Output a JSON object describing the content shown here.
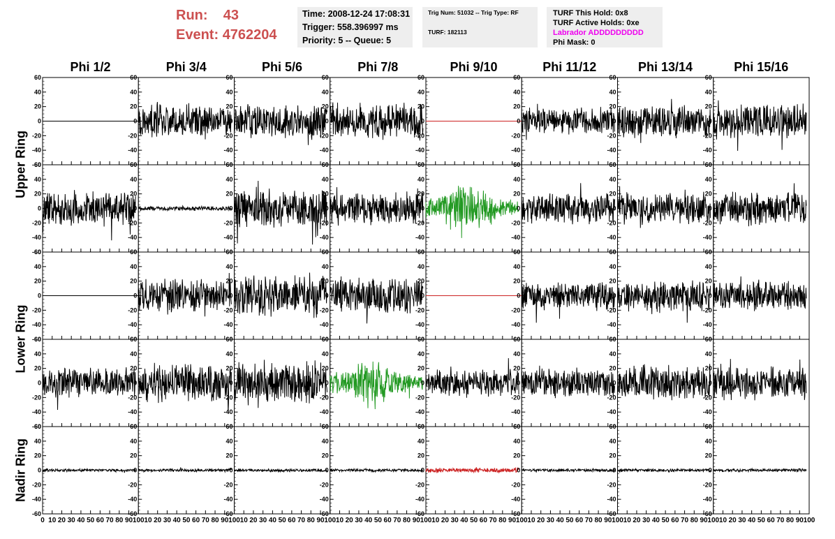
{
  "header": {
    "run_label": "Run:",
    "run_value": "43",
    "event_label": "Event:",
    "event_value": "4762204"
  },
  "info": {
    "time": "Time: 2008-12-24 17:08:31",
    "trigger": "Trigger: 558.396997 ms",
    "priority": "Priority: 5 -- Queue: 5",
    "trig_num": "Trig Num: 51032 -- Trig Type: RF",
    "turf": "TURF: 182113",
    "turf_this_hold": "TURF This Hold: 0x8",
    "turf_active_holds": "TURF Active Holds: 0xe",
    "labrador": "Labrador ADDDDDDDDD",
    "phi_mask": "Phi Mask: 0"
  },
  "colors": {
    "trace": "#000000",
    "green": "#229922",
    "red": "#cc2222",
    "run_text": "#cc5050",
    "magenta": "#ee00ee",
    "info_bg": "#eeeeee"
  },
  "chart_data": {
    "type": "line",
    "columns": [
      "Phi 1/2",
      "Phi 3/4",
      "Phi 5/6",
      "Phi 7/8",
      "Phi 9/10",
      "Phi 11/12",
      "Phi 13/14",
      "Phi 15/16"
    ],
    "rows": [
      "Upper Ring",
      "Upper Ring",
      "Lower Ring",
      "Lower Ring",
      "Nadir Ring"
    ],
    "row_labels": [
      {
        "label": "Upper Ring",
        "rows": [
          0,
          1
        ]
      },
      {
        "label": "Lower Ring",
        "rows": [
          2,
          3
        ]
      },
      {
        "label": "Nadir Ring",
        "rows": [
          4
        ]
      }
    ],
    "xlim": [
      0,
      100
    ],
    "ylim": [
      -60,
      60
    ],
    "y_ticks": [
      "60",
      "40",
      "20",
      "0",
      "-20",
      "-40",
      "-60"
    ],
    "x_ticks": [
      "0",
      "10",
      "20",
      "30",
      "40",
      "50",
      "60",
      "70",
      "80",
      "90",
      "100"
    ],
    "panels": [
      [
        {
          "style": "flat",
          "amp": 0,
          "color": "trace"
        },
        {
          "style": "noise",
          "amp": 22,
          "color": "trace"
        },
        {
          "style": "noise",
          "amp": 24,
          "color": "trace"
        },
        {
          "style": "noise",
          "amp": 24,
          "color": "trace"
        },
        {
          "style": "flat",
          "amp": 0,
          "color": "red"
        },
        {
          "style": "noise",
          "amp": 18,
          "color": "trace"
        },
        {
          "style": "noise",
          "amp": 22,
          "color": "trace"
        },
        {
          "style": "noise",
          "amp": 24,
          "color": "trace"
        }
      ],
      [
        {
          "style": "noise",
          "amp": 24,
          "color": "trace"
        },
        {
          "style": "noise",
          "amp": 3,
          "color": "trace"
        },
        {
          "style": "noise",
          "amp": 26,
          "color": "trace"
        },
        {
          "style": "noise",
          "amp": 22,
          "color": "trace"
        },
        {
          "style": "pulse",
          "amp": 28,
          "color": "green"
        },
        {
          "style": "noise",
          "amp": 20,
          "color": "trace"
        },
        {
          "style": "noise",
          "amp": 20,
          "color": "trace"
        },
        {
          "style": "noise",
          "amp": 22,
          "color": "trace"
        }
      ],
      [
        {
          "style": "flat",
          "amp": 0,
          "color": "trace"
        },
        {
          "style": "noise",
          "amp": 22,
          "color": "trace"
        },
        {
          "style": "noise",
          "amp": 28,
          "color": "trace"
        },
        {
          "style": "noise",
          "amp": 24,
          "color": "trace"
        },
        {
          "style": "flat",
          "amp": 0,
          "color": "red"
        },
        {
          "style": "noise",
          "amp": 20,
          "color": "trace"
        },
        {
          "style": "noise",
          "amp": 20,
          "color": "trace"
        },
        {
          "style": "noise",
          "amp": 20,
          "color": "trace"
        }
      ],
      [
        {
          "style": "noise",
          "amp": 20,
          "color": "trace"
        },
        {
          "style": "noise",
          "amp": 26,
          "color": "trace"
        },
        {
          "style": "noise",
          "amp": 28,
          "color": "trace"
        },
        {
          "style": "pulse",
          "amp": 26,
          "color": "green"
        },
        {
          "style": "noise",
          "amp": 18,
          "color": "trace"
        },
        {
          "style": "noise",
          "amp": 20,
          "color": "trace"
        },
        {
          "style": "noise",
          "amp": 22,
          "color": "trace"
        },
        {
          "style": "noise",
          "amp": 22,
          "color": "trace"
        }
      ],
      [
        {
          "style": "noise",
          "amp": 2,
          "color": "trace"
        },
        {
          "style": "noise",
          "amp": 2,
          "color": "trace"
        },
        {
          "style": "noise",
          "amp": 2,
          "color": "trace"
        },
        {
          "style": "noise",
          "amp": 2,
          "color": "trace"
        },
        {
          "style": "noise",
          "amp": 3,
          "color": "red"
        },
        {
          "style": "noise",
          "amp": 2,
          "color": "trace"
        },
        {
          "style": "noise",
          "amp": 2,
          "color": "trace"
        },
        {
          "style": "noise",
          "amp": 2,
          "color": "trace"
        }
      ]
    ]
  }
}
